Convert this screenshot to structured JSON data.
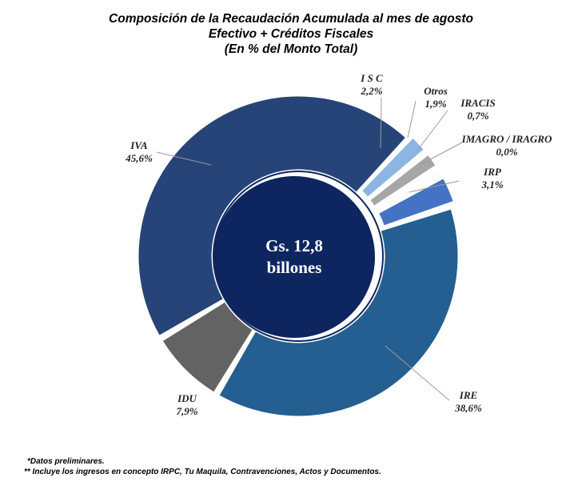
{
  "title": {
    "line1": "Composición de la Recaudación Acumulada al mes de agosto",
    "line2": "Efectivo + Créditos Fiscales",
    "line3": "(En % del Monto Total)"
  },
  "center": {
    "line1": "Gs. 12,8",
    "line2": "billones"
  },
  "notes": {
    "note1": "*Datos preliminares.",
    "note2": "** Incluye los ingresos en concepto IRPC, Tu Maquila, Contravenciones, Actos y Documentos."
  },
  "chart_data": {
    "type": "pie",
    "variant": "donut",
    "title": "Composición de la Recaudación Acumulada al mes de agosto",
    "center_label": "Gs. 12,8 billones",
    "unit": "%",
    "slices": [
      {
        "name": "I S C",
        "value": 2.2,
        "label": "2,2%",
        "color": "#8db4e2"
      },
      {
        "name": "Otros",
        "value": 1.9,
        "label": "1,9%",
        "color": "#a6a6a6"
      },
      {
        "name": "IRACIS",
        "value": 0.7,
        "label": "0,7%",
        "color": "#95b3d7"
      },
      {
        "name": "IMAGRO / IRAGRO",
        "value": 0.0,
        "label": "0,0%",
        "color": "#8db4e2"
      },
      {
        "name": "IRP",
        "value": 3.1,
        "label": "3,1%",
        "color": "#4472c4"
      },
      {
        "name": "IRE",
        "value": 38.6,
        "label": "38,6%",
        "color": "#255e91"
      },
      {
        "name": "IDU",
        "value": 7.9,
        "label": "7,9%",
        "color": "#636363"
      },
      {
        "name": "IVA",
        "value": 45.6,
        "label": "45,6%",
        "color": "#264478"
      }
    ],
    "center_color": "#0d2660"
  }
}
